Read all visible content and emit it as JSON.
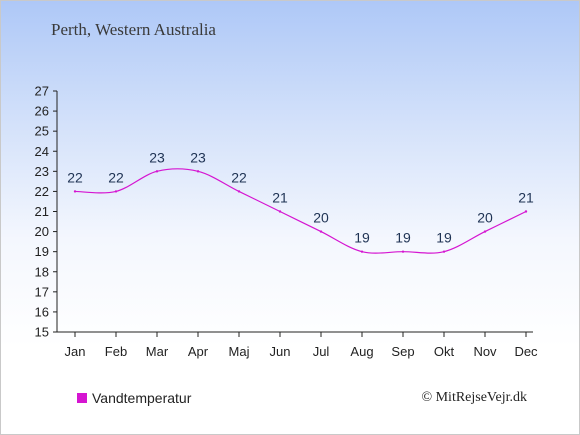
{
  "page": {
    "title": "Perth, Western Australia",
    "credit": "© MitRejseVejr.dk"
  },
  "colors": {
    "series": "#d515d1",
    "axis": "#222222",
    "label": "#1f3354"
  },
  "chart_data": {
    "type": "line",
    "title": "Perth, Western Australia",
    "xlabel": "",
    "ylabel": "",
    "categories": [
      "Jan",
      "Feb",
      "Mar",
      "Apr",
      "Maj",
      "Jun",
      "Jul",
      "Aug",
      "Sep",
      "Okt",
      "Nov",
      "Dec"
    ],
    "series": [
      {
        "name": "Vandtemperatur",
        "values": [
          22,
          22,
          23,
          23,
          22,
          21,
          20,
          19,
          19,
          19,
          20,
          21
        ]
      }
    ],
    "ylim": [
      15,
      27
    ],
    "yticks": [
      15,
      16,
      17,
      18,
      19,
      20,
      21,
      22,
      23,
      24,
      25,
      26,
      27
    ],
    "grid": false,
    "legend_position": "bottom-left"
  }
}
